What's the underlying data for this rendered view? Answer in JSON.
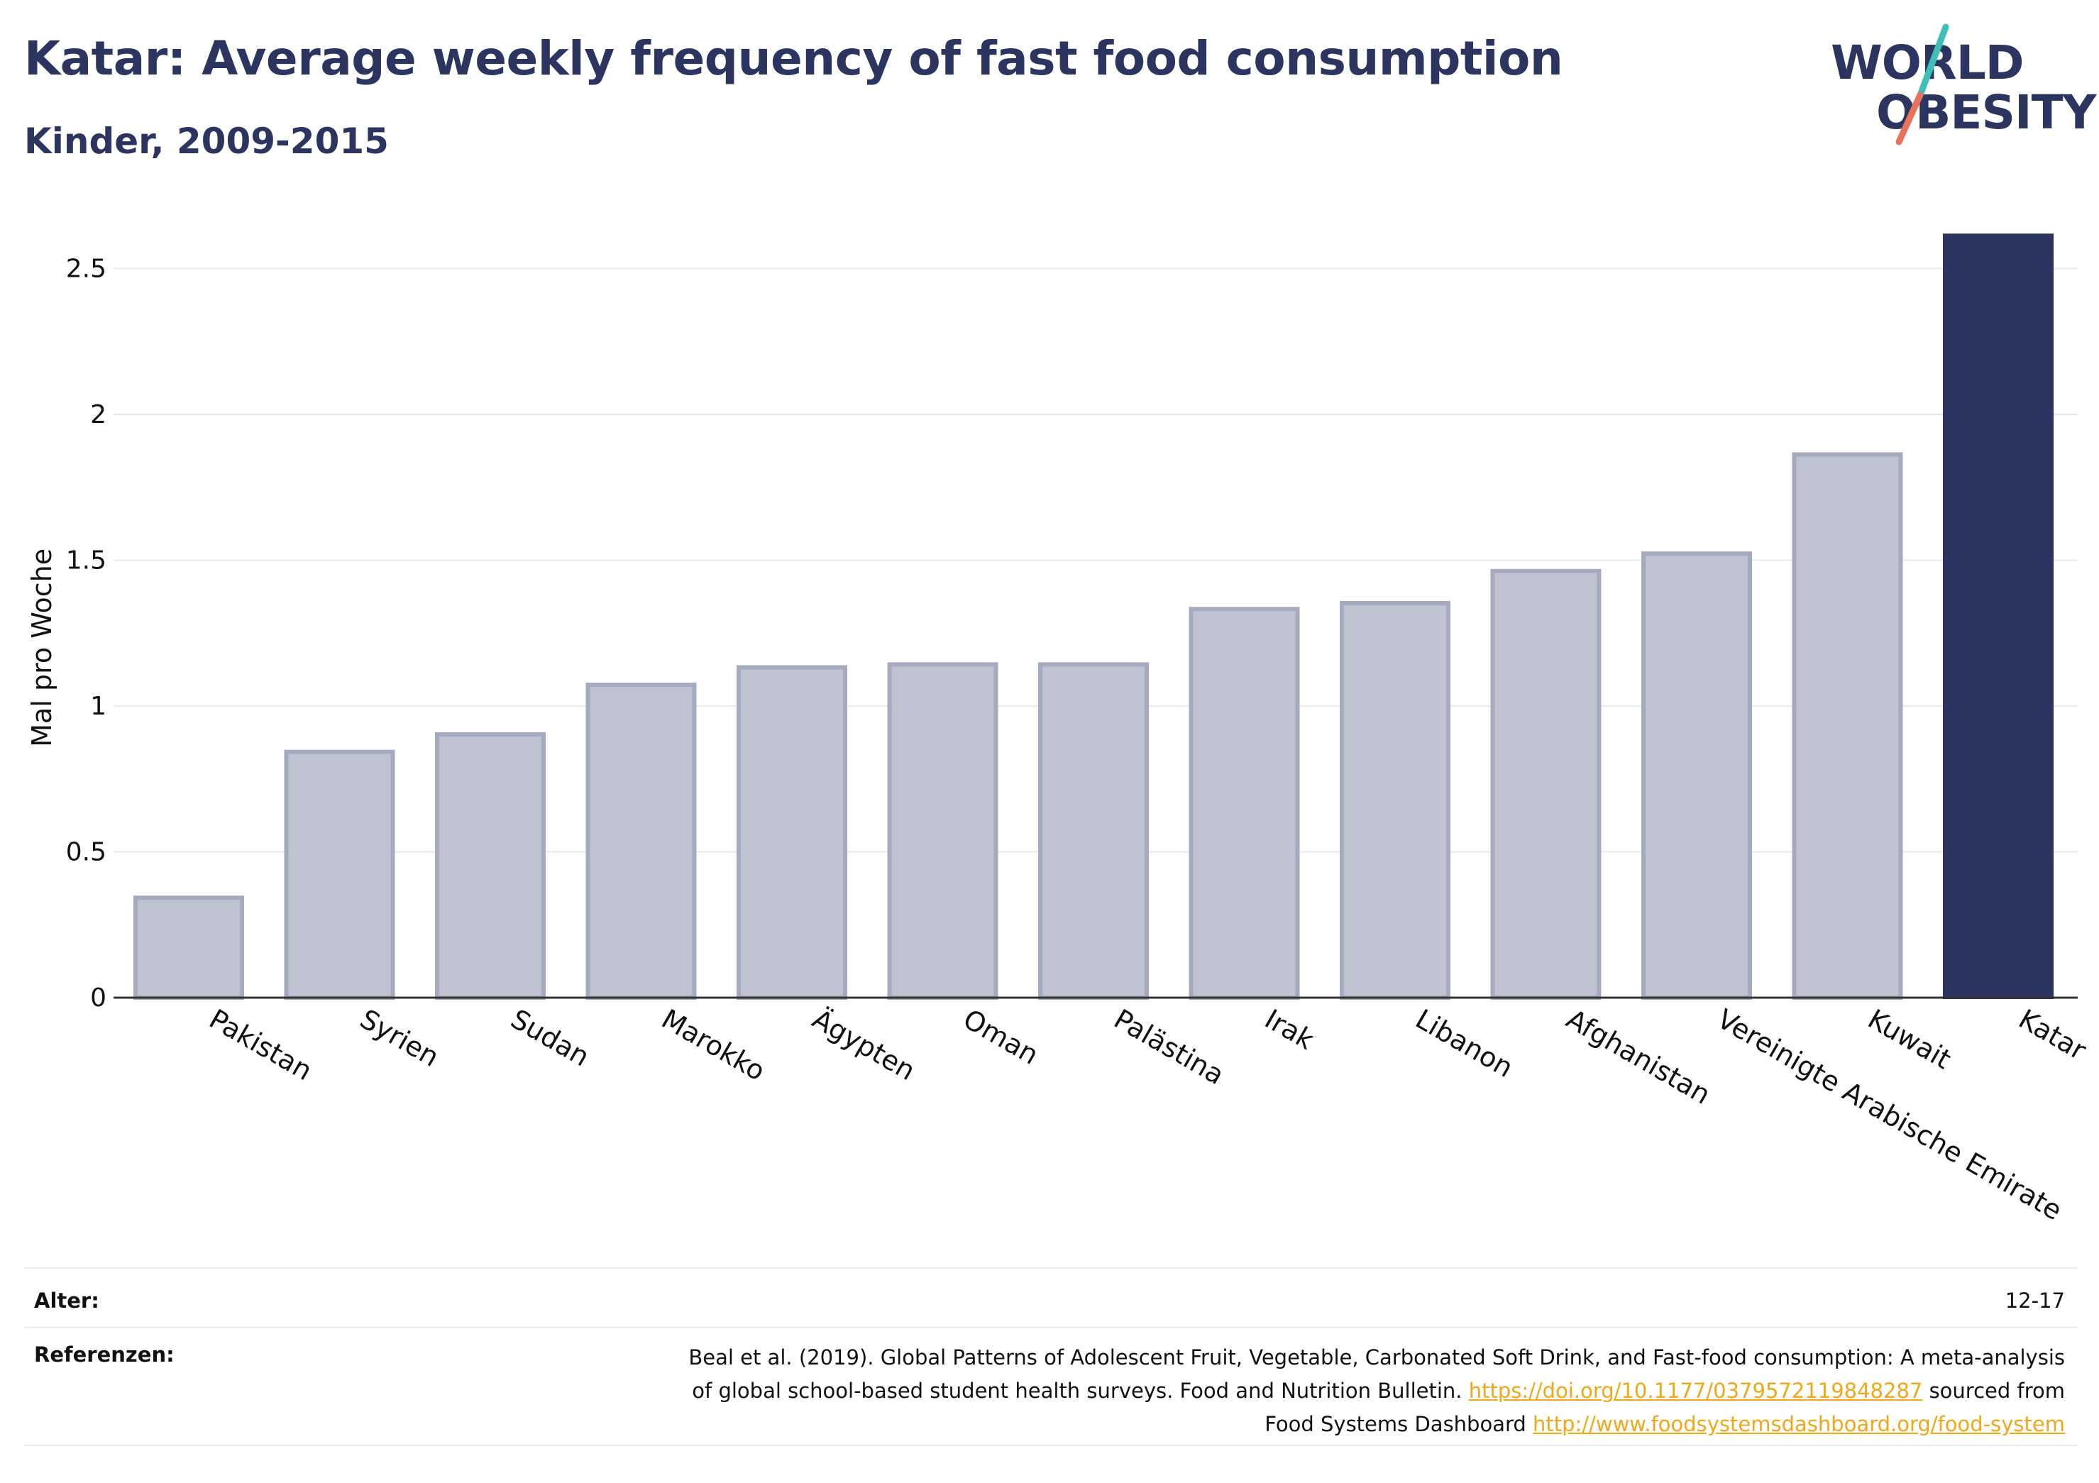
{
  "header": {
    "title": "Katar: Average weekly frequency of fast food consumption",
    "subtitle": "Kinder, 2009-2015"
  },
  "logo": {
    "line1": "WORLD",
    "line2": "OBESITY",
    "accent_teal": "#3fbfb8",
    "accent_coral": "#e8735a"
  },
  "chart_data": {
    "type": "bar",
    "categories": [
      "Pakistan",
      "Syrien",
      "Sudan",
      "Marokko",
      "Ägypten",
      "Oman",
      "Palästina",
      "Irak",
      "Libanon",
      "Afghanistan",
      "Vereinigte Arabische Emirate",
      "Kuwait",
      "Katar"
    ],
    "values": [
      0.35,
      0.85,
      0.91,
      1.08,
      1.14,
      1.15,
      1.15,
      1.34,
      1.36,
      1.47,
      1.53,
      1.87,
      2.62
    ],
    "highlight": "Katar",
    "ylabel": "Mal pro Woche",
    "xlabel": "",
    "ylim": [
      0,
      2.7
    ],
    "yticks": [
      "0",
      "0.5",
      "1",
      "1.5",
      "2",
      "2.5"
    ],
    "grid": true,
    "colors": {
      "bar": "#bfc2d0",
      "bar_border": "#a5aac0",
      "highlight": "#2b355f",
      "grid": "#e8e9f0",
      "axis": "#444444"
    }
  },
  "footer": {
    "age_label": "Alter:",
    "age_value": "12-17",
    "ref_label": "Referenzen:",
    "ref_text_1": "Beal et al. (2019). Global Patterns of Adolescent Fruit, Vegetable, Carbonated Soft Drink, and Fast-food consumption: A meta-analysis",
    "ref_text_2": "of global school-based student health surveys. Food and Nutrition Bulletin.",
    "ref_link_1": "https://doi.org/10.1177/0379572119848287",
    "ref_text_3": "sourced from",
    "ref_text_4": "Food Systems Dashboard",
    "ref_link_2": "http://www.foodsystemsdashboard.org/food-system",
    "link_color": "#f0a818"
  }
}
